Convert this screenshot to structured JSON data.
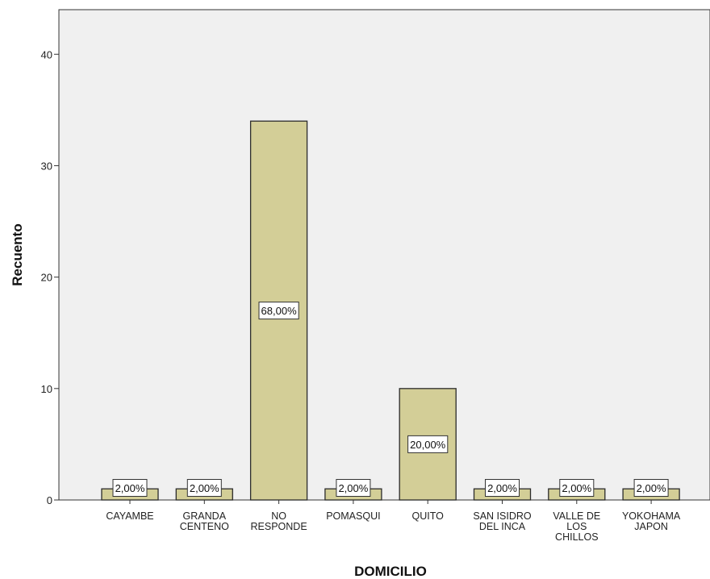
{
  "chart_data": {
    "type": "bar",
    "categories": [
      [
        "CAYAMBE"
      ],
      [
        "GRANDA",
        "CENTENO"
      ],
      [
        "NO",
        "RESPONDE"
      ],
      [
        "POMASQUI"
      ],
      [
        "QUITO"
      ],
      [
        "SAN ISIDRO",
        "DEL INCA"
      ],
      [
        "VALLE DE",
        "LOS",
        "CHILLOS"
      ],
      [
        "YOKOHAMA",
        "JAPON"
      ]
    ],
    "values": [
      1,
      1,
      34,
      1,
      10,
      1,
      1,
      1
    ],
    "data_labels": [
      "2,00%",
      "2,00%",
      "68,00%",
      "2,00%",
      "20,00%",
      "2,00%",
      "2,00%",
      "2,00%"
    ],
    "xlabel": "DOMICILIO",
    "ylabel": "Recuento",
    "ylim": [
      0,
      44
    ],
    "yticks": [
      0,
      10,
      20,
      30,
      40
    ],
    "grid": false,
    "colors": {
      "bar_fill": "#d3ce97",
      "bar_stroke": "#2b2b2b",
      "plot_background": "#f0f0f0",
      "label_box_fill": "#ffffff"
    }
  }
}
